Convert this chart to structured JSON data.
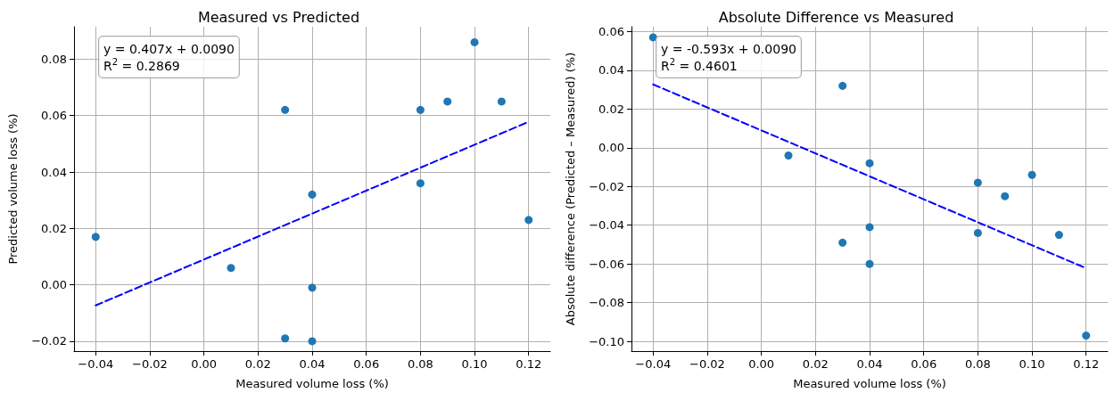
{
  "chart_data": [
    {
      "type": "scatter",
      "title": "Measured vs Predicted",
      "xlabel": "Measured volume loss (%)",
      "ylabel": "Predicted volume loss (%)",
      "annotations": [
        "y = 0.407x + 0.0090\nR$^{2}$ = 0.2869"
      ],
      "xlim": [
        -0.048,
        0.128
      ],
      "xticks": [
        {
          "value": -0.04,
          "label": "−0.04"
        },
        {
          "value": -0.02,
          "label": "−0.02"
        },
        {
          "value": 0,
          "label": "0.00"
        },
        {
          "value": 0.02,
          "label": "0.02"
        },
        {
          "value": 0.04,
          "label": "0.04"
        },
        {
          "value": 0.06,
          "label": "0.06"
        },
        {
          "value": 0.08,
          "label": "0.08"
        },
        {
          "value": 0.1,
          "label": "0.10"
        },
        {
          "value": 0.12,
          "label": "0.12"
        }
      ],
      "ylim": [
        -0.0235,
        0.0915
      ],
      "yticks": [
        {
          "value": -0.02,
          "label": "−0.02"
        },
        {
          "value": 0,
          "label": "0.00"
        },
        {
          "value": 0.02,
          "label": "0.02"
        },
        {
          "value": 0.04,
          "label": "0.04"
        },
        {
          "value": 0.06,
          "label": "0.06"
        },
        {
          "value": 0.08,
          "label": "0.08"
        }
      ],
      "grid": true,
      "series": [
        {
          "marker": "circle",
          "color": "#1f77b4",
          "x": [
            -0.04,
            0.01,
            0.03,
            0.03,
            0.04,
            0.04,
            0.04,
            0.08,
            0.08,
            0.09,
            0.1,
            0.11,
            0.12
          ],
          "values": [
            0.017,
            0.006,
            0.062,
            -0.019,
            0.032,
            -0.001,
            -0.02,
            0.062,
            0.036,
            0.065,
            0.086,
            0.065,
            0.023
          ]
        },
        {
          "type": "line",
          "color": "#0000ff",
          "line_style": "dashed",
          "x": [
            -0.04,
            0.12
          ],
          "values": [
            -0.0073,
            0.0578
          ]
        }
      ]
    },
    {
      "type": "scatter",
      "title": "Absolute Difference vs Measured",
      "xlabel": "Measured volume loss (%)",
      "ylabel": "Absolute difference (Predicted – Measured) (%)",
      "annotations": [
        "y = -0.593x + 0.0090\nR$^{2}$ = 0.4601"
      ],
      "xlim": [
        -0.048,
        0.128
      ],
      "xticks": [
        {
          "value": -0.04,
          "label": "−0.04"
        },
        {
          "value": -0.02,
          "label": "−0.02"
        },
        {
          "value": 0,
          "label": "0.00"
        },
        {
          "value": 0.02,
          "label": "0.02"
        },
        {
          "value": 0.04,
          "label": "0.04"
        },
        {
          "value": 0.06,
          "label": "0.06"
        },
        {
          "value": 0.08,
          "label": "0.08"
        },
        {
          "value": 0.1,
          "label": "0.10"
        },
        {
          "value": 0.12,
          "label": "0.12"
        }
      ],
      "ylim": [
        -0.105,
        0.0625
      ],
      "yticks": [
        {
          "value": -0.1,
          "label": "−0.10"
        },
        {
          "value": -0.08,
          "label": "−0.08"
        },
        {
          "value": -0.06,
          "label": "−0.06"
        },
        {
          "value": -0.04,
          "label": "−0.04"
        },
        {
          "value": -0.02,
          "label": "−0.02"
        },
        {
          "value": 0,
          "label": "0.00"
        },
        {
          "value": 0.02,
          "label": "0.02"
        },
        {
          "value": 0.04,
          "label": "0.04"
        },
        {
          "value": 0.06,
          "label": "0.06"
        }
      ],
      "grid": true,
      "series": [
        {
          "marker": "circle",
          "color": "#1f77b4",
          "x": [
            -0.04,
            0.01,
            0.03,
            0.03,
            0.04,
            0.04,
            0.04,
            0.08,
            0.08,
            0.09,
            0.1,
            0.11,
            0.12
          ],
          "values": [
            0.057,
            -0.004,
            0.032,
            -0.049,
            -0.008,
            -0.041,
            -0.06,
            -0.018,
            -0.044,
            -0.025,
            -0.014,
            -0.045,
            -0.097
          ]
        },
        {
          "type": "line",
          "color": "#0000ff",
          "line_style": "dashed",
          "x": [
            -0.04,
            0.12
          ],
          "values": [
            0.0327,
            -0.0622
          ]
        }
      ]
    }
  ]
}
